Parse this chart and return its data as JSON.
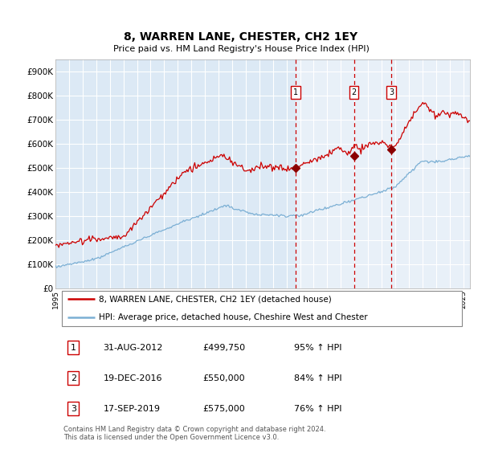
{
  "title": "8, WARREN LANE, CHESTER, CH2 1EY",
  "subtitle": "Price paid vs. HM Land Registry's House Price Index (HPI)",
  "xlim_start": 1995.0,
  "xlim_end": 2025.5,
  "ylim_min": 0,
  "ylim_max": 950000,
  "yticks": [
    0,
    100000,
    200000,
    300000,
    400000,
    500000,
    600000,
    700000,
    800000,
    900000
  ],
  "ytick_labels": [
    "£0",
    "£100K",
    "£200K",
    "£300K",
    "£400K",
    "£500K",
    "£600K",
    "£700K",
    "£800K",
    "£900K"
  ],
  "xticks": [
    1995,
    1996,
    1997,
    1998,
    1999,
    2000,
    2001,
    2002,
    2003,
    2004,
    2005,
    2006,
    2007,
    2008,
    2009,
    2010,
    2011,
    2012,
    2013,
    2014,
    2015,
    2016,
    2017,
    2018,
    2019,
    2020,
    2021,
    2022,
    2023,
    2024,
    2025
  ],
  "background_color": "#ffffff",
  "plot_bg_color": "#dce9f5",
  "grid_color": "#ffffff",
  "red_line_color": "#cc0000",
  "blue_line_color": "#7bafd4",
  "purchase_marker_color": "#8b0000",
  "vline_color": "#cc0000",
  "purchases": [
    {
      "date_num": 2012.667,
      "price": 499750,
      "label": "1"
    },
    {
      "date_num": 2016.967,
      "price": 550000,
      "label": "2"
    },
    {
      "date_num": 2019.717,
      "price": 575000,
      "label": "3"
    }
  ],
  "legend_red_label": "8, WARREN LANE, CHESTER, CH2 1EY (detached house)",
  "legend_blue_label": "HPI: Average price, detached house, Cheshire West and Chester",
  "table_rows": [
    {
      "num": "1",
      "date": "31-AUG-2012",
      "price": "£499,750",
      "pct": "95% ↑ HPI"
    },
    {
      "num": "2",
      "date": "19-DEC-2016",
      "price": "£550,000",
      "pct": "84% ↑ HPI"
    },
    {
      "num": "3",
      "date": "17-SEP-2019",
      "price": "£575,000",
      "pct": "76% ↑ HPI"
    }
  ],
  "footnote": "Contains HM Land Registry data © Crown copyright and database right 2024.\nThis data is licensed under the Open Government Licence v3.0."
}
